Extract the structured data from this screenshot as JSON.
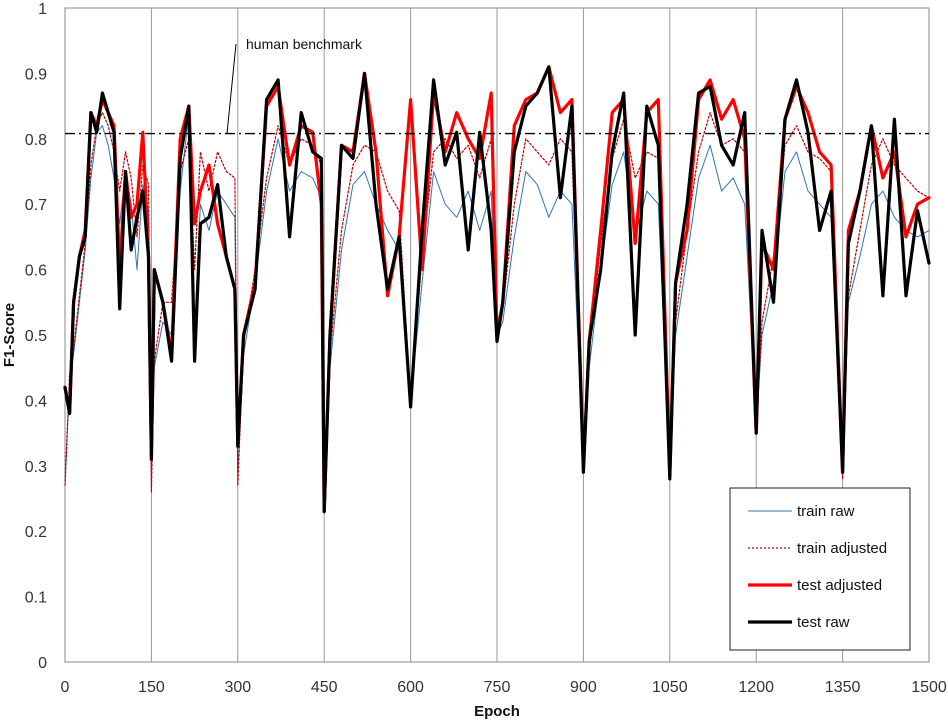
{
  "chart_data": {
    "type": "line",
    "title": "",
    "xlabel": "Epoch",
    "ylabel": "F1-Score",
    "xlim": [
      0,
      1500
    ],
    "ylim": [
      0,
      1
    ],
    "x_ticks": [
      0,
      150,
      300,
      450,
      600,
      750,
      900,
      1050,
      1200,
      1350,
      1500
    ],
    "y_ticks": [
      0,
      0.1,
      0.2,
      0.3,
      0.4,
      0.5,
      0.6,
      0.7,
      0.8,
      0.9,
      1
    ],
    "x_tick_labels": [
      "0",
      "150",
      "300",
      "450",
      "600",
      "750",
      "900",
      "1050",
      "1200",
      "1350",
      "1500"
    ],
    "y_tick_labels": [
      "0",
      "0.1",
      "0.2",
      "0.3",
      "0.4",
      "0.5",
      "0.6",
      "0.7",
      "0.8",
      "0.9",
      "1"
    ],
    "grid": "vertical lines at x ticks",
    "legend_position": "bottom-right",
    "benchmark": {
      "label": "human benchmark",
      "value": 0.808,
      "color": "#000000"
    },
    "series": [
      {
        "name": "train raw",
        "color": "#2e75b6",
        "style": "thin",
        "x": [
          0,
          8,
          15,
          25,
          35,
          45,
          55,
          65,
          75,
          85,
          95,
          105,
          115,
          125,
          135,
          145,
          150,
          155,
          170,
          185,
          200,
          215,
          225,
          235,
          250,
          265,
          280,
          295,
          300,
          310,
          330,
          350,
          370,
          390,
          410,
          430,
          445,
          450,
          460,
          480,
          500,
          520,
          540,
          560,
          580,
          600,
          620,
          640,
          660,
          680,
          700,
          720,
          740,
          750,
          760,
          780,
          800,
          820,
          840,
          860,
          880,
          900,
          910,
          930,
          950,
          970,
          990,
          1010,
          1030,
          1050,
          1060,
          1080,
          1100,
          1120,
          1140,
          1160,
          1180,
          1200,
          1210,
          1230,
          1250,
          1270,
          1290,
          1310,
          1330,
          1350,
          1360,
          1380,
          1400,
          1420,
          1440,
          1460,
          1480,
          1500
        ],
        "y": [
          0.27,
          0.43,
          0.47,
          0.55,
          0.63,
          0.74,
          0.81,
          0.82,
          0.79,
          0.74,
          0.67,
          0.75,
          0.7,
          0.6,
          0.73,
          0.69,
          0.28,
          0.45,
          0.52,
          0.5,
          0.72,
          0.84,
          0.51,
          0.7,
          0.66,
          0.72,
          0.7,
          0.68,
          0.29,
          0.47,
          0.58,
          0.72,
          0.8,
          0.72,
          0.75,
          0.74,
          0.71,
          0.24,
          0.45,
          0.63,
          0.73,
          0.75,
          0.7,
          0.66,
          0.63,
          0.4,
          0.58,
          0.75,
          0.7,
          0.68,
          0.72,
          0.66,
          0.72,
          0.5,
          0.52,
          0.65,
          0.75,
          0.73,
          0.68,
          0.72,
          0.7,
          0.3,
          0.45,
          0.6,
          0.73,
          0.78,
          0.65,
          0.72,
          0.7,
          0.3,
          0.5,
          0.62,
          0.74,
          0.79,
          0.72,
          0.74,
          0.7,
          0.36,
          0.5,
          0.58,
          0.75,
          0.78,
          0.72,
          0.7,
          0.68,
          0.29,
          0.55,
          0.62,
          0.7,
          0.72,
          0.68,
          0.66,
          0.65,
          0.66
        ]
      },
      {
        "name": "train adjusted",
        "color": "#c00000",
        "style": "dotted",
        "x": [
          0,
          8,
          15,
          25,
          35,
          45,
          55,
          65,
          75,
          85,
          95,
          105,
          115,
          125,
          135,
          145,
          150,
          155,
          170,
          185,
          200,
          215,
          225,
          235,
          250,
          265,
          280,
          295,
          300,
          310,
          330,
          350,
          370,
          390,
          410,
          430,
          445,
          450,
          460,
          480,
          500,
          520,
          540,
          560,
          580,
          600,
          620,
          640,
          660,
          680,
          700,
          720,
          740,
          750,
          760,
          780,
          800,
          820,
          840,
          860,
          880,
          900,
          910,
          930,
          950,
          970,
          990,
          1010,
          1030,
          1050,
          1060,
          1080,
          1100,
          1120,
          1140,
          1160,
          1180,
          1200,
          1210,
          1230,
          1250,
          1270,
          1290,
          1310,
          1330,
          1350,
          1360,
          1380,
          1400,
          1420,
          1440,
          1460,
          1480,
          1500
        ],
        "y": [
          0.27,
          0.44,
          0.48,
          0.56,
          0.64,
          0.76,
          0.82,
          0.84,
          0.82,
          0.78,
          0.72,
          0.78,
          0.74,
          0.65,
          0.76,
          0.73,
          0.26,
          0.46,
          0.55,
          0.55,
          0.75,
          0.8,
          0.6,
          0.78,
          0.72,
          0.78,
          0.75,
          0.74,
          0.27,
          0.49,
          0.6,
          0.74,
          0.82,
          0.76,
          0.8,
          0.79,
          0.76,
          0.23,
          0.47,
          0.66,
          0.76,
          0.79,
          0.78,
          0.72,
          0.69,
          0.4,
          0.62,
          0.78,
          0.8,
          0.77,
          0.79,
          0.74,
          0.8,
          0.52,
          0.54,
          0.7,
          0.8,
          0.78,
          0.76,
          0.8,
          0.78,
          0.3,
          0.47,
          0.64,
          0.77,
          0.83,
          0.74,
          0.78,
          0.77,
          0.29,
          0.52,
          0.66,
          0.78,
          0.84,
          0.79,
          0.8,
          0.78,
          0.35,
          0.52,
          0.62,
          0.79,
          0.82,
          0.78,
          0.77,
          0.75,
          0.28,
          0.56,
          0.66,
          0.76,
          0.8,
          0.76,
          0.74,
          0.72,
          0.71
        ]
      },
      {
        "name": "test adjusted",
        "color": "#ff0000",
        "style": "thick",
        "x": [
          0,
          8,
          15,
          25,
          35,
          45,
          55,
          65,
          75,
          85,
          95,
          105,
          115,
          125,
          135,
          145,
          150,
          155,
          170,
          185,
          200,
          215,
          225,
          235,
          250,
          265,
          280,
          295,
          300,
          310,
          330,
          350,
          370,
          390,
          410,
          430,
          445,
          450,
          460,
          480,
          500,
          520,
          540,
          560,
          580,
          600,
          620,
          640,
          660,
          680,
          700,
          720,
          740,
          750,
          760,
          780,
          800,
          820,
          840,
          860,
          880,
          900,
          910,
          930,
          950,
          970,
          990,
          1010,
          1030,
          1050,
          1060,
          1080,
          1100,
          1120,
          1140,
          1160,
          1180,
          1200,
          1210,
          1230,
          1250,
          1270,
          1290,
          1310,
          1330,
          1350,
          1360,
          1380,
          1400,
          1420,
          1440,
          1460,
          1480,
          1500
        ],
        "y": [
          0.42,
          0.38,
          0.55,
          0.62,
          0.66,
          0.84,
          0.82,
          0.86,
          0.84,
          0.82,
          0.6,
          0.75,
          0.68,
          0.7,
          0.81,
          0.62,
          0.31,
          0.6,
          0.55,
          0.47,
          0.8,
          0.85,
          0.67,
          0.72,
          0.76,
          0.67,
          0.62,
          0.57,
          0.33,
          0.5,
          0.58,
          0.85,
          0.88,
          0.76,
          0.82,
          0.81,
          0.7,
          0.23,
          0.5,
          0.79,
          0.78,
          0.9,
          0.78,
          0.56,
          0.65,
          0.86,
          0.6,
          0.87,
          0.78,
          0.84,
          0.8,
          0.77,
          0.87,
          0.5,
          0.55,
          0.82,
          0.86,
          0.87,
          0.91,
          0.84,
          0.86,
          0.3,
          0.49,
          0.66,
          0.84,
          0.86,
          0.64,
          0.84,
          0.86,
          0.29,
          0.58,
          0.66,
          0.86,
          0.89,
          0.83,
          0.86,
          0.8,
          0.35,
          0.64,
          0.6,
          0.83,
          0.88,
          0.84,
          0.78,
          0.76,
          0.29,
          0.66,
          0.72,
          0.82,
          0.74,
          0.78,
          0.65,
          0.7,
          0.71
        ]
      },
      {
        "name": "test raw",
        "color": "#000000",
        "style": "thick",
        "x": [
          0,
          8,
          15,
          25,
          35,
          45,
          55,
          65,
          75,
          85,
          95,
          105,
          115,
          125,
          135,
          145,
          150,
          155,
          170,
          185,
          200,
          215,
          225,
          235,
          250,
          265,
          280,
          295,
          300,
          310,
          330,
          350,
          370,
          390,
          410,
          430,
          445,
          450,
          460,
          480,
          500,
          520,
          540,
          560,
          580,
          600,
          620,
          640,
          660,
          680,
          700,
          720,
          740,
          750,
          760,
          780,
          800,
          820,
          840,
          860,
          880,
          900,
          910,
          930,
          950,
          970,
          990,
          1010,
          1030,
          1050,
          1060,
          1080,
          1100,
          1120,
          1140,
          1160,
          1180,
          1200,
          1210,
          1230,
          1250,
          1270,
          1290,
          1310,
          1330,
          1350,
          1360,
          1380,
          1400,
          1420,
          1440,
          1460,
          1480,
          1500
        ],
        "y": [
          0.42,
          0.38,
          0.55,
          0.62,
          0.65,
          0.84,
          0.81,
          0.87,
          0.84,
          0.81,
          0.54,
          0.75,
          0.63,
          0.68,
          0.72,
          0.62,
          0.31,
          0.6,
          0.55,
          0.46,
          0.77,
          0.85,
          0.46,
          0.67,
          0.68,
          0.73,
          0.62,
          0.57,
          0.33,
          0.5,
          0.57,
          0.86,
          0.89,
          0.65,
          0.84,
          0.78,
          0.77,
          0.23,
          0.5,
          0.79,
          0.77,
          0.9,
          0.7,
          0.57,
          0.65,
          0.39,
          0.66,
          0.89,
          0.76,
          0.81,
          0.63,
          0.81,
          0.66,
          0.49,
          0.55,
          0.78,
          0.85,
          0.87,
          0.91,
          0.71,
          0.85,
          0.29,
          0.49,
          0.6,
          0.78,
          0.87,
          0.5,
          0.85,
          0.79,
          0.28,
          0.58,
          0.7,
          0.87,
          0.88,
          0.79,
          0.76,
          0.84,
          0.35,
          0.66,
          0.55,
          0.83,
          0.89,
          0.81,
          0.66,
          0.72,
          0.29,
          0.64,
          0.72,
          0.82,
          0.56,
          0.83,
          0.56,
          0.69,
          0.61
        ]
      }
    ]
  }
}
